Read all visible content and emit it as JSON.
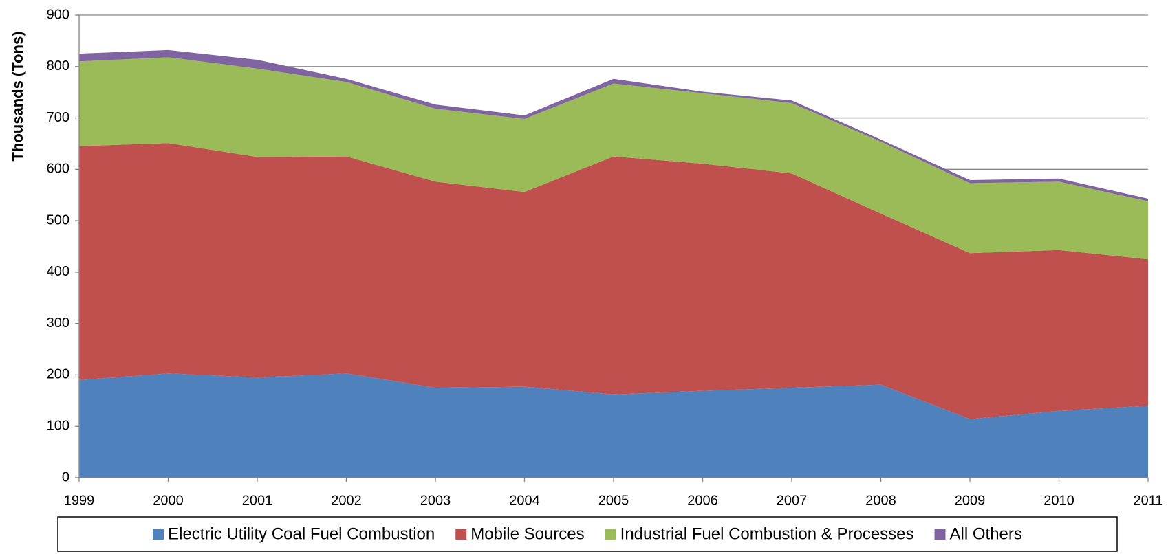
{
  "chart_data": {
    "type": "stacked_area",
    "y_label": "Thousands (Tons)",
    "categories": [
      "1999",
      "2000",
      "2001",
      "2002",
      "2003",
      "2004",
      "2005",
      "2006",
      "2007",
      "2008",
      "2009",
      "2010",
      "2011"
    ],
    "series": [
      {
        "name": "Electric Utility Coal Fuel Combustion",
        "color": "#4f81bd",
        "values": [
          190,
          203,
          195,
          203,
          175,
          177,
          162,
          169,
          175,
          181,
          114,
          130,
          140
        ]
      },
      {
        "name": "Mobile Sources",
        "color": "#c0504d",
        "values": [
          455,
          448,
          429,
          422,
          401,
          379,
          463,
          442,
          417,
          333,
          323,
          313,
          285
        ]
      },
      {
        "name": "Industrial Fuel Combustion & Processes",
        "color": "#9bbb59",
        "values": [
          165,
          167,
          172,
          145,
          142,
          142,
          142,
          137,
          137,
          140,
          136,
          133,
          113
        ]
      },
      {
        "name": "All Others",
        "color": "#8064a2",
        "values": [
          15,
          14,
          17,
          6,
          8,
          7,
          9,
          3,
          5,
          4,
          6,
          6,
          5
        ]
      }
    ],
    "ylim": [
      0,
      900
    ],
    "yticks": [
      0,
      100,
      200,
      300,
      400,
      500,
      600,
      700,
      800,
      900
    ],
    "grid": true,
    "legend": "bottom"
  }
}
